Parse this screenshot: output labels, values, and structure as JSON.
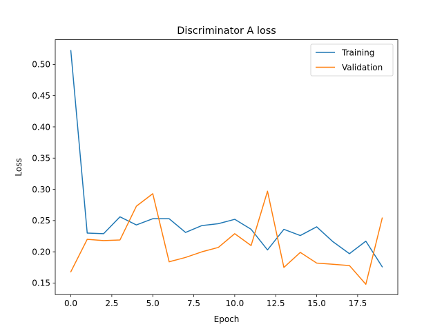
{
  "chart_data": {
    "type": "line",
    "title": "Discriminator A loss",
    "xlabel": "Epoch",
    "ylabel": "Loss",
    "xlim": [
      -0.95,
      19.95
    ],
    "ylim": [
      0.1315,
      0.5395
    ],
    "xticks": [
      0,
      2.5,
      5,
      7.5,
      10,
      12.5,
      15,
      17.5
    ],
    "xtick_labels": [
      "0.0",
      "2.5",
      "5.0",
      "7.5",
      "10.0",
      "12.5",
      "15.0",
      "17.5"
    ],
    "yticks": [
      0.15,
      0.2,
      0.25,
      0.3,
      0.35,
      0.4,
      0.45,
      0.5
    ],
    "ytick_labels": [
      "0.15",
      "0.20",
      "0.25",
      "0.30",
      "0.35",
      "0.40",
      "0.45",
      "0.50"
    ],
    "grid": false,
    "legend_position": "top-right",
    "x": [
      0,
      1,
      2,
      3,
      4,
      5,
      6,
      7,
      8,
      9,
      10,
      11,
      12,
      13,
      14,
      15,
      16,
      17,
      18,
      19
    ],
    "series": [
      {
        "name": "Training",
        "color": "#1f77b4",
        "values": [
          0.522,
          0.23,
          0.229,
          0.256,
          0.243,
          0.253,
          0.253,
          0.231,
          0.242,
          0.245,
          0.252,
          0.236,
          0.203,
          0.236,
          0.226,
          0.24,
          0.216,
          0.197,
          0.217,
          0.176
        ]
      },
      {
        "name": "Validation",
        "color": "#ff7f0e",
        "values": [
          0.168,
          0.22,
          0.218,
          0.219,
          0.273,
          0.293,
          0.184,
          0.191,
          0.2,
          0.207,
          0.229,
          0.21,
          0.297,
          0.175,
          0.199,
          0.182,
          0.18,
          0.178,
          0.148,
          0.254
        ]
      }
    ]
  }
}
